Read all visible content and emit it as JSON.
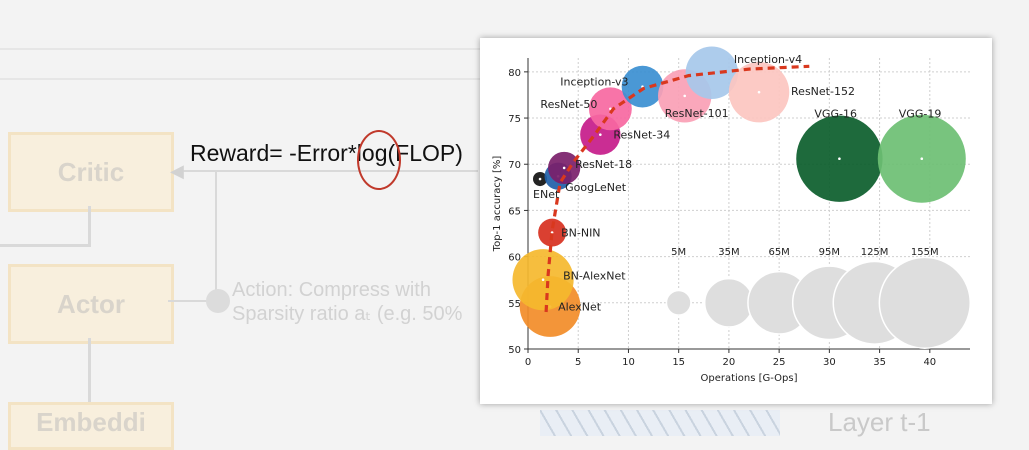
{
  "slide": {
    "critic_label": "Critic",
    "actor_label": "Actor",
    "embedding_label": "Embeddi",
    "action_line1": "Action: Compress with",
    "action_line2": "Sparsity ratio aₜ (e.g. 50%",
    "layer_label": "Layer t-1",
    "formula": "Reward= -Error*log(FLOP)"
  },
  "chart_data": {
    "type": "scatter",
    "title": "",
    "xlabel": "Operations [G-Ops]",
    "ylabel": "Top-1 accuracy [%]",
    "xlim": [
      0,
      44
    ],
    "ylim": [
      50,
      81.5
    ],
    "xticks": [
      0,
      5,
      10,
      15,
      20,
      25,
      30,
      35,
      40
    ],
    "yticks": [
      50,
      55,
      60,
      65,
      70,
      75,
      80
    ],
    "grid": true,
    "points": [
      {
        "name": "AlexNet",
        "x": 2.2,
        "y": 54.6,
        "params_M": 61,
        "color": "#f28c28"
      },
      {
        "name": "BN-AlexNet",
        "x": 1.5,
        "y": 57.5,
        "params_M": 62,
        "color": "#f5b82e"
      },
      {
        "name": "BN-NIN",
        "x": 2.4,
        "y": 62.6,
        "params_M": 7.6,
        "color": "#d7301f"
      },
      {
        "name": "ENet",
        "x": 1.2,
        "y": 68.4,
        "params_M": 0.4,
        "color": "#111111"
      },
      {
        "name": "GoogLeNet",
        "x": 3.0,
        "y": 68.7,
        "params_M": 7,
        "color": "#1f5fa8"
      },
      {
        "name": "ResNet-18",
        "x": 3.6,
        "y": 69.6,
        "params_M": 11.7,
        "color": "#7a1f6a"
      },
      {
        "name": "ResNet-34",
        "x": 7.2,
        "y": 73.2,
        "params_M": 21.8,
        "color": "#c51b8a"
      },
      {
        "name": "ResNet-50",
        "x": 8.2,
        "y": 76.0,
        "params_M": 25.6,
        "color": "#f768a1"
      },
      {
        "name": "Inception-v3",
        "x": 11.4,
        "y": 78.4,
        "params_M": 23.8,
        "color": "#3b8fd1"
      },
      {
        "name": "ResNet-101",
        "x": 15.6,
        "y": 77.4,
        "params_M": 44.5,
        "color": "#fa9fb5"
      },
      {
        "name": "Inception-v4",
        "x": 18.3,
        "y": 79.9,
        "params_M": 42.7,
        "color": "#a6c8ea"
      },
      {
        "name": "ResNet-152",
        "x": 23.0,
        "y": 77.8,
        "params_M": 60.2,
        "color": "#fcc5c0"
      },
      {
        "name": "VGG-16",
        "x": 31.0,
        "y": 70.6,
        "params_M": 138,
        "color": "#0b5d2b"
      },
      {
        "name": "VGG-19",
        "x": 39.2,
        "y": 70.6,
        "params_M": 144,
        "color": "#6cbf73"
      }
    ],
    "size_legend": [
      {
        "label": "5M",
        "x": 15.0,
        "params_M": 5
      },
      {
        "label": "35M",
        "x": 20.0,
        "params_M": 35
      },
      {
        "label": "65M",
        "x": 25.0,
        "params_M": 65
      },
      {
        "label": "95M",
        "x": 30.0,
        "params_M": 95
      },
      {
        "label": "125M",
        "x": 34.5,
        "params_M": 125
      },
      {
        "label": "155M",
        "x": 39.5,
        "params_M": 155
      }
    ],
    "size_legend_y": 55,
    "pareto_curve": [
      [
        1.8,
        54.0
      ],
      [
        2.0,
        58.0
      ],
      [
        2.4,
        62.8
      ],
      [
        3.2,
        68.0
      ],
      [
        4.5,
        70.2
      ],
      [
        6.5,
        73.0
      ],
      [
        8.5,
        76.0
      ],
      [
        11.5,
        78.2
      ],
      [
        16,
        79.6
      ],
      [
        22,
        80.3
      ],
      [
        28,
        80.6
      ]
    ],
    "colors": {
      "curve": "#d9381e",
      "grid": "#cfcfcf",
      "legend_bubble": "#dedede"
    }
  }
}
